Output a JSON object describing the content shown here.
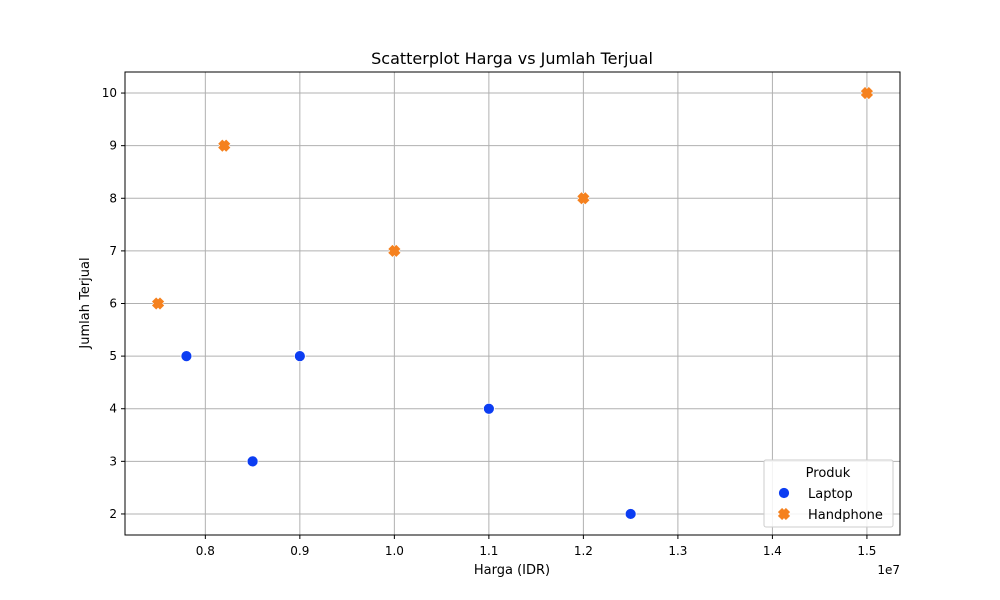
{
  "chart_data": {
    "type": "scatter",
    "title": "Scatterplot Harga vs Jumlah Terjual",
    "xlabel": "Harga (IDR)",
    "ylabel": "Jumlah Terjual",
    "x_offset_label": "1e7",
    "xlim": [
      7150000,
      15350000
    ],
    "ylim": [
      1.6,
      10.4
    ],
    "x_ticks": [
      8000000,
      9000000,
      10000000,
      11000000,
      12000000,
      13000000,
      14000000,
      15000000
    ],
    "x_tick_labels": [
      "0.8",
      "0.9",
      "1.0",
      "1.1",
      "1.2",
      "1.3",
      "1.4",
      "1.5"
    ],
    "y_ticks": [
      2,
      3,
      4,
      5,
      6,
      7,
      8,
      9,
      10
    ],
    "y_tick_labels": [
      "2",
      "3",
      "4",
      "5",
      "6",
      "7",
      "8",
      "9",
      "10"
    ],
    "grid": true,
    "legend": {
      "title": "Produk",
      "position": "lower-right"
    },
    "series": [
      {
        "name": "Laptop",
        "marker": "circle",
        "color": "#0c3df2",
        "points": [
          {
            "x": 7800000,
            "y": 5
          },
          {
            "x": 8500000,
            "y": 3
          },
          {
            "x": 9000000,
            "y": 5
          },
          {
            "x": 11000000,
            "y": 4
          },
          {
            "x": 12500000,
            "y": 2
          }
        ]
      },
      {
        "name": "Handphone",
        "marker": "x",
        "color": "#f5811e",
        "points": [
          {
            "x": 7500000,
            "y": 6
          },
          {
            "x": 8200000,
            "y": 9
          },
          {
            "x": 10000000,
            "y": 7
          },
          {
            "x": 12000000,
            "y": 8
          },
          {
            "x": 15000000,
            "y": 10
          }
        ]
      }
    ]
  }
}
